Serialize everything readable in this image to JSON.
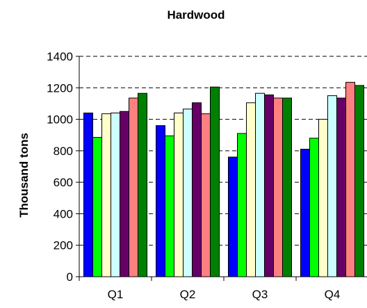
{
  "chart_data": {
    "type": "bar",
    "title": "Hardwood",
    "xlabel": "",
    "ylabel": "Thousand tons",
    "ylim": [
      0,
      1400
    ],
    "yticks": [
      0,
      200,
      400,
      600,
      800,
      1000,
      1200,
      1400
    ],
    "grid": true,
    "legend": "none",
    "categories": [
      "Q1",
      "Q2",
      "Q3",
      "Q4"
    ],
    "series": [
      {
        "color": "#0000ff",
        "values": [
          1040,
          960,
          760,
          810
        ]
      },
      {
        "color": "#00ff00",
        "values": [
          885,
          895,
          910,
          880
        ]
      },
      {
        "color": "#ffffcc",
        "values": [
          1035,
          1040,
          1105,
          1000
        ]
      },
      {
        "color": "#ccffff",
        "values": [
          1040,
          1065,
          1165,
          1150
        ]
      },
      {
        "color": "#660066",
        "values": [
          1050,
          1105,
          1155,
          1135
        ]
      },
      {
        "color": "#ff8080",
        "values": [
          1135,
          1035,
          1135,
          1235
        ]
      },
      {
        "color": "#008000",
        "values": [
          1165,
          1205,
          1135,
          1215
        ]
      }
    ]
  }
}
